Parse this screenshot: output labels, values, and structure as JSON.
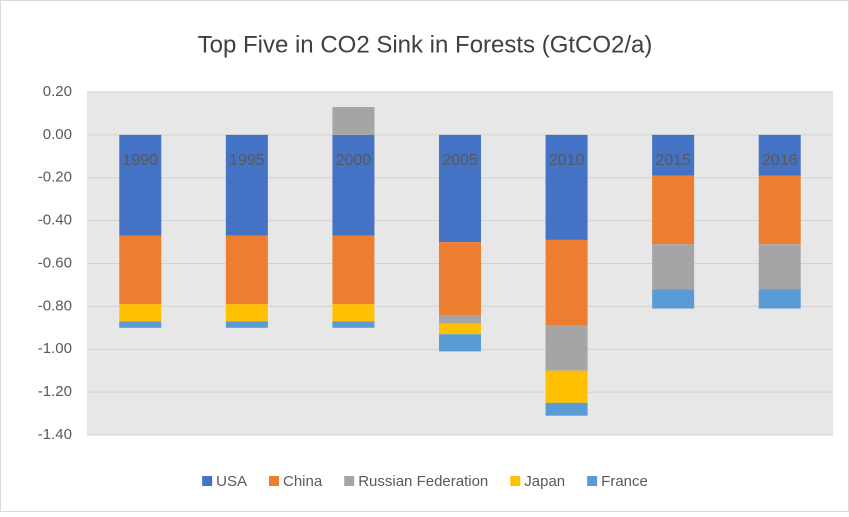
{
  "chart_data": {
    "type": "bar",
    "stacked": true,
    "title": "Top Five in CO2 Sink in Forests (GtCO2/a)",
    "categories": [
      "1990",
      "1995",
      "2000",
      "2005",
      "2010",
      "2015",
      "2016"
    ],
    "series": [
      {
        "name": "USA",
        "color": "#4472c4",
        "values": [
          -0.47,
          -0.47,
          -0.47,
          -0.5,
          -0.49,
          -0.19,
          -0.19
        ]
      },
      {
        "name": "China",
        "color": "#ed7d31",
        "values": [
          -0.32,
          -0.32,
          -0.32,
          -0.34,
          -0.4,
          -0.32,
          -0.32
        ]
      },
      {
        "name": "Russian Federation",
        "color": "#a5a5a5",
        "values": [
          0,
          0,
          0.13,
          -0.04,
          -0.21,
          -0.21,
          -0.21
        ]
      },
      {
        "name": "Japan",
        "color": "#ffc000",
        "values": [
          -0.08,
          -0.08,
          -0.08,
          -0.05,
          -0.15,
          0,
          0
        ]
      },
      {
        "name": "France",
        "color": "#5b9bd5",
        "values": [
          -0.03,
          -0.03,
          -0.03,
          -0.08,
          -0.06,
          -0.09,
          -0.09
        ]
      }
    ],
    "ylim": [
      -1.4,
      0.2
    ],
    "yticks": [
      {
        "value": 0.2,
        "label": "0.20"
      },
      {
        "value": 0,
        "label": "0.00"
      },
      {
        "value": -0.2,
        "label": "-0.20"
      },
      {
        "value": -0.4,
        "label": "-0.40"
      },
      {
        "value": -0.6,
        "label": "-0.60"
      },
      {
        "value": -0.8,
        "label": "-0.80"
      },
      {
        "value": -1.0,
        "label": "-1.00"
      },
      {
        "value": -1.2,
        "label": "-1.20"
      },
      {
        "value": -1.4,
        "label": "-1.40"
      }
    ],
    "grid": true,
    "legend": "bottom"
  }
}
